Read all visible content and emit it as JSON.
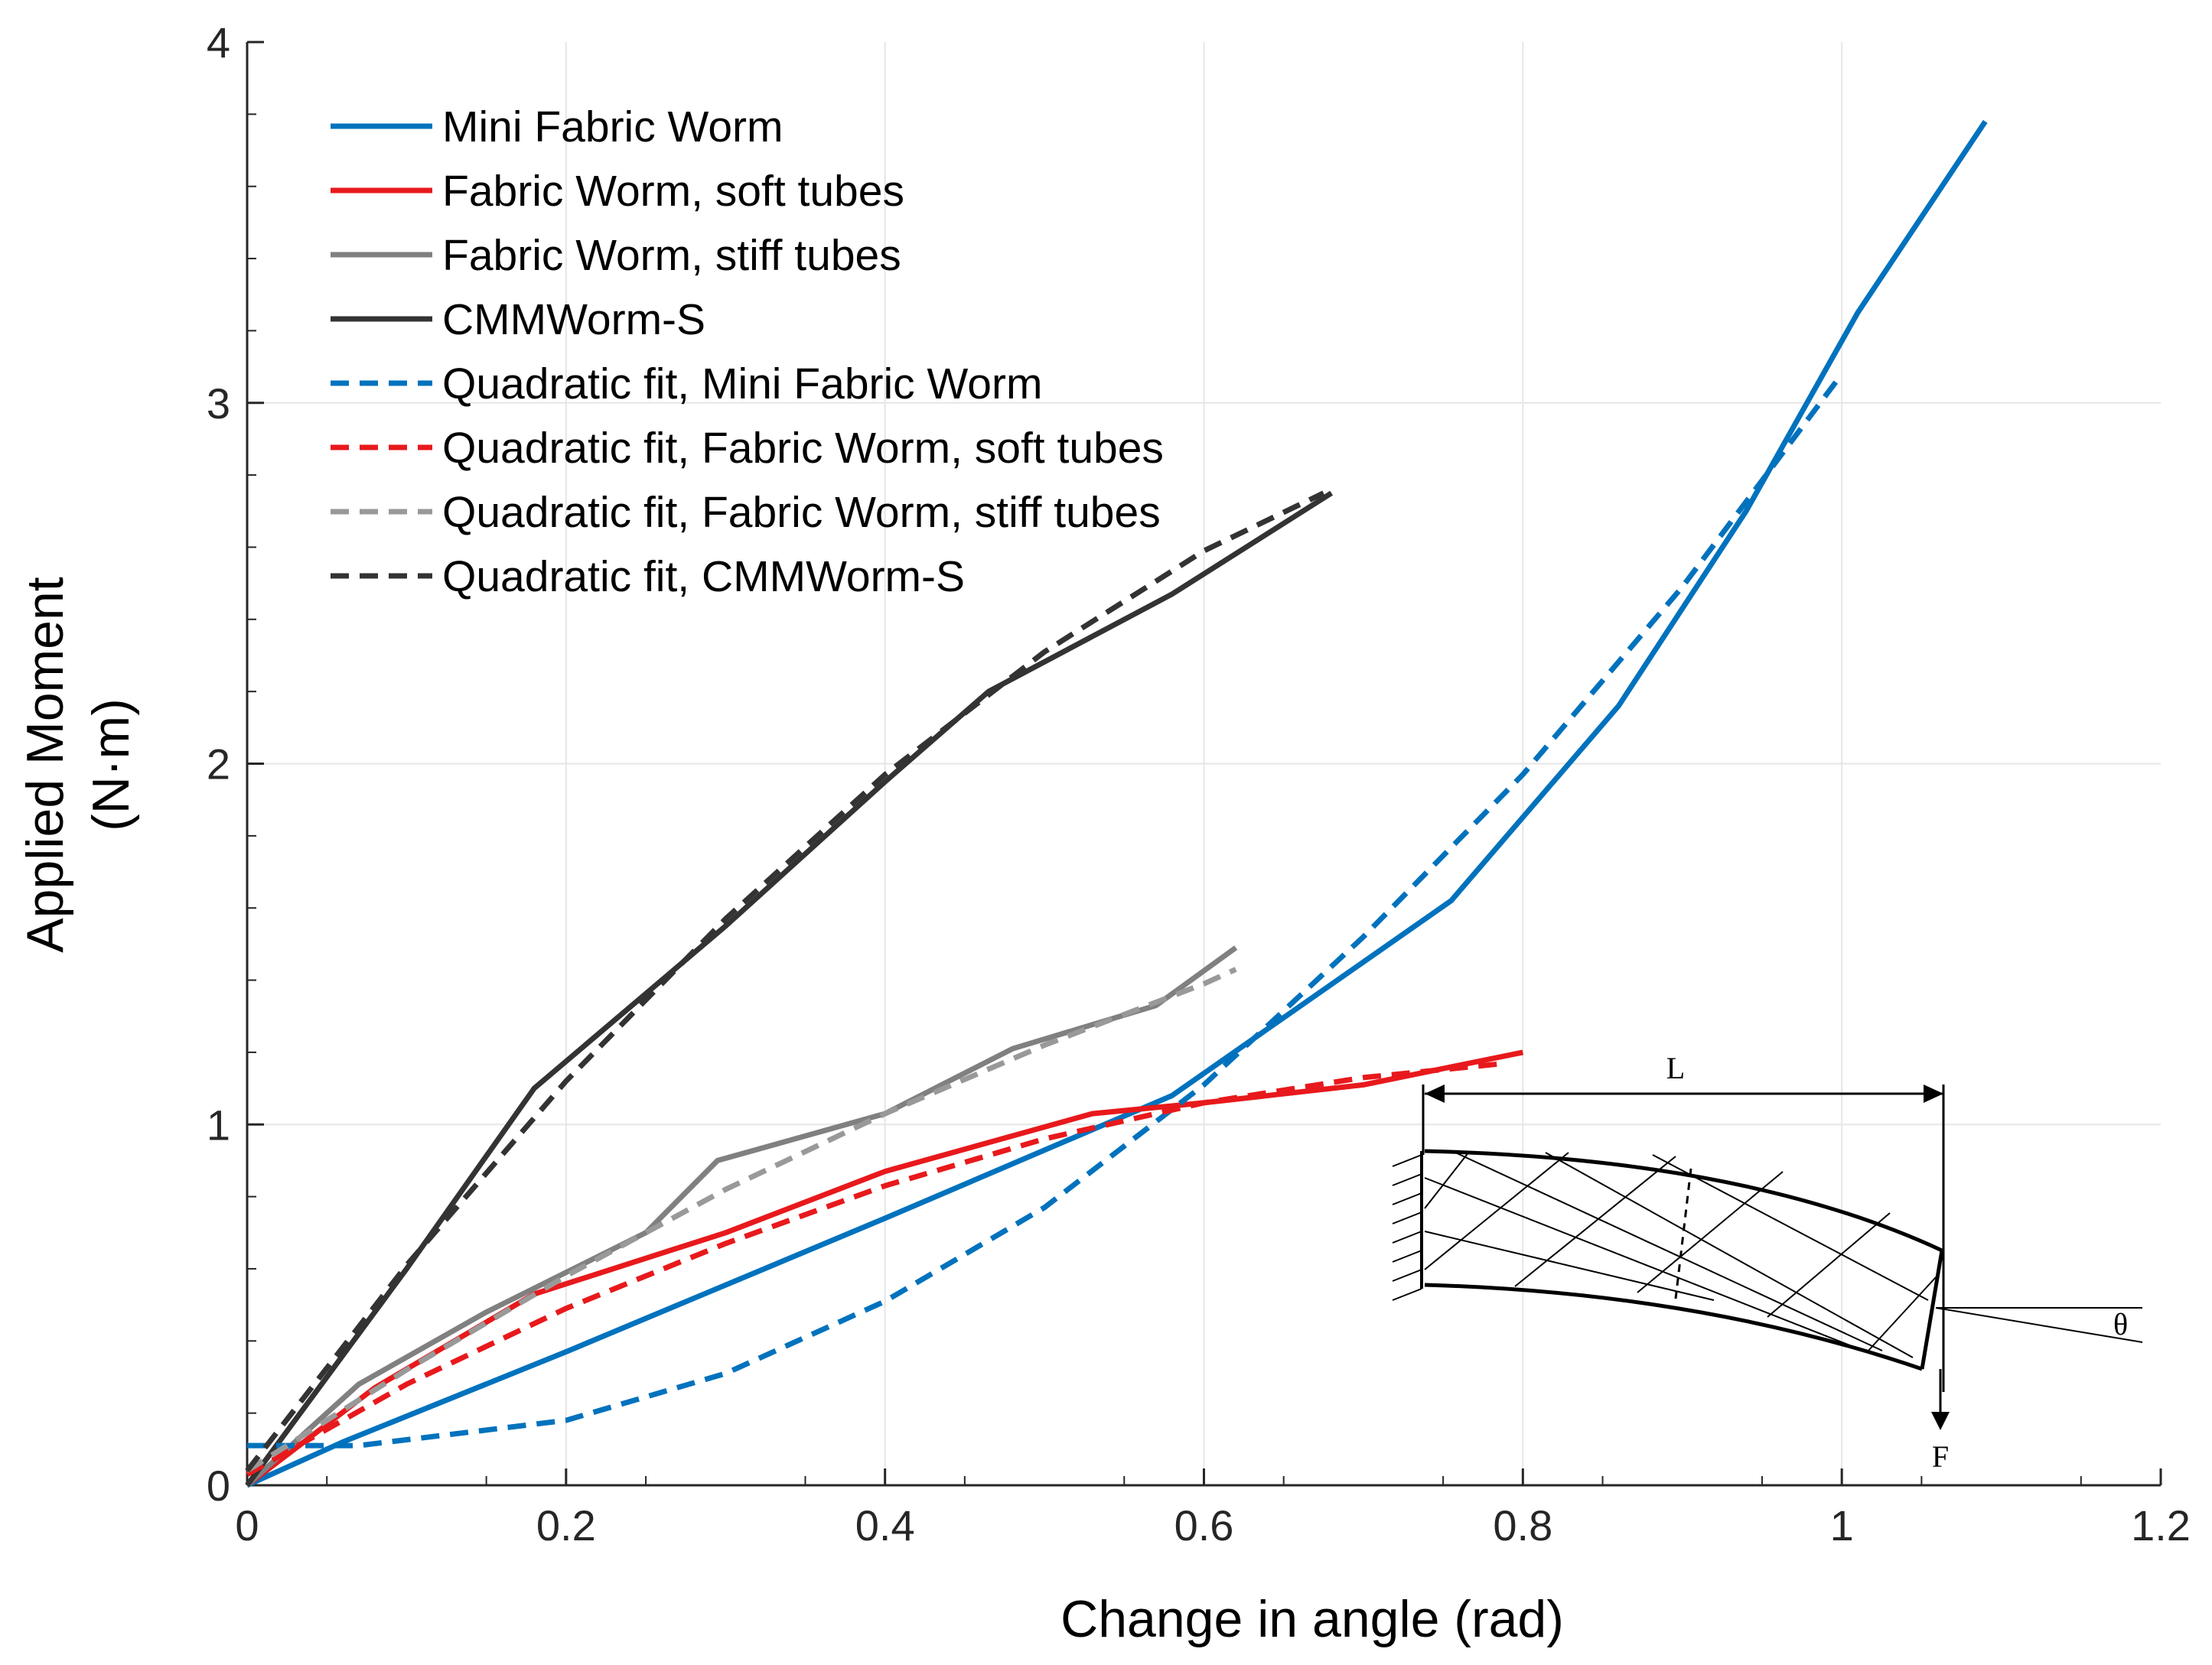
{
  "chart_data": {
    "type": "line",
    "title": "",
    "xlabel": "Change in angle (rad)",
    "ylabel_line1": "Applied Moment",
    "ylabel_line2": "(N·m)",
    "xlim": [
      0,
      1.2
    ],
    "ylim": [
      0,
      4
    ],
    "xticks": [
      0,
      0.2,
      0.4,
      0.6,
      0.8,
      1,
      1.2
    ],
    "xtick_labels": [
      "0",
      "0.2",
      "0.4",
      "0.6",
      "0.8",
      "1",
      "1.2"
    ],
    "yticks": [
      0,
      1,
      2,
      3,
      4
    ],
    "ytick_labels": [
      "0",
      "1",
      "2",
      "3",
      "4"
    ],
    "grid": true,
    "legend_position": "top-left",
    "series": [
      {
        "name": "Mini Fabric Worm",
        "color": "#0072bd",
        "dash": "solid",
        "x": [
          0,
          0.06,
          0.2,
          0.4,
          0.58,
          0.755,
          0.86,
          0.94,
          1.01,
          1.09
        ],
        "y": [
          0,
          0.12,
          0.37,
          0.74,
          1.08,
          1.62,
          2.16,
          2.7,
          3.25,
          3.78
        ]
      },
      {
        "name": "Fabric Worm, soft tubes",
        "color": "#e8191c",
        "dash": "solid",
        "x": [
          0,
          0.08,
          0.18,
          0.3,
          0.4,
          0.53,
          0.6,
          0.7,
          0.8
        ],
        "y": [
          0,
          0.27,
          0.53,
          0.7,
          0.87,
          1.03,
          1.06,
          1.11,
          1.2
        ]
      },
      {
        "name": "Fabric Worm, stiff tubes",
        "color": "#808080",
        "dash": "solid",
        "x": [
          0,
          0.07,
          0.15,
          0.25,
          0.295,
          0.4,
          0.48,
          0.57,
          0.62
        ],
        "y": [
          0,
          0.28,
          0.48,
          0.7,
          0.9,
          1.03,
          1.21,
          1.33,
          1.49
        ]
      },
      {
        "name": "CMMWorm-S",
        "color": "#333333",
        "dash": "solid",
        "x": [
          0,
          0.1,
          0.18,
          0.3,
          0.4,
          0.465,
          0.58,
          0.68
        ],
        "y": [
          0,
          0.6,
          1.1,
          1.55,
          1.95,
          2.2,
          2.47,
          2.75
        ]
      },
      {
        "name": "Quadratic fit, Mini Fabric Worm",
        "color": "#0072bd",
        "dash": "dashed",
        "x": [
          0,
          0.07,
          0.2,
          0.3,
          0.4,
          0.5,
          0.6,
          0.7,
          0.8,
          0.9,
          1.0
        ],
        "y": [
          0.11,
          0.11,
          0.18,
          0.31,
          0.51,
          0.77,
          1.11,
          1.52,
          1.97,
          2.49,
          3.08
        ]
      },
      {
        "name": "Quadratic fit, Fabric Worm, soft tubes",
        "color": "#e8191c",
        "dash": "dashed",
        "x": [
          0,
          0.1,
          0.2,
          0.3,
          0.4,
          0.5,
          0.6,
          0.7,
          0.79
        ],
        "y": [
          0.03,
          0.28,
          0.49,
          0.67,
          0.83,
          0.96,
          1.06,
          1.13,
          1.17
        ]
      },
      {
        "name": "Quadratic fit, Fabric Worm, stiff tubes",
        "color": "#999999",
        "dash": "dashed",
        "x": [
          0,
          0.1,
          0.2,
          0.3,
          0.4,
          0.5,
          0.6,
          0.62
        ],
        "y": [
          0.04,
          0.32,
          0.58,
          0.82,
          1.03,
          1.22,
          1.39,
          1.43
        ]
      },
      {
        "name": "Quadratic fit, CMMWorm-S",
        "color": "#333333",
        "dash": "dashed",
        "x": [
          0,
          0.1,
          0.2,
          0.3,
          0.4,
          0.5,
          0.6,
          0.675
        ],
        "y": [
          0.04,
          0.61,
          1.12,
          1.57,
          1.97,
          2.31,
          2.59,
          2.75
        ]
      }
    ],
    "inset": {
      "length_label": "L",
      "angle_label": "θ",
      "force_label": "F"
    }
  }
}
